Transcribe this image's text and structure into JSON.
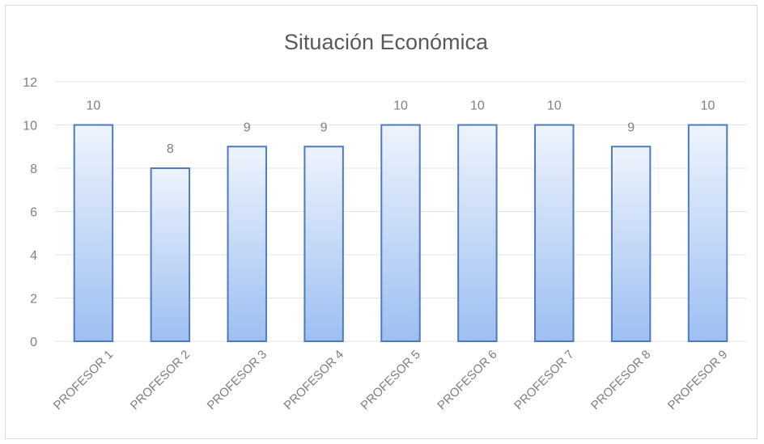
{
  "chart_data": {
    "type": "bar",
    "title": "Situación  Económica",
    "categories": [
      "PROFESOR 1",
      "PROFESOR 2",
      "PROFESOR 3",
      "PROFESOR 4",
      "PROFESOR 5",
      "PROFESOR 6",
      "PROFESOR 7",
      "PROFESOR 8",
      "PROFESOR 9"
    ],
    "values": [
      10,
      8,
      9,
      9,
      10,
      10,
      10,
      9,
      10
    ],
    "ylim": [
      0,
      12
    ],
    "yticks": [
      0,
      2,
      4,
      6,
      8,
      10,
      12
    ],
    "grid": true,
    "legend": "none",
    "colors": {
      "bar_top": "#eef4fd",
      "bar_bottom": "#9dbff2",
      "bar_border": "#4f7bbd",
      "grid": "#e3e3e3",
      "text": "#7f7f7f"
    }
  }
}
